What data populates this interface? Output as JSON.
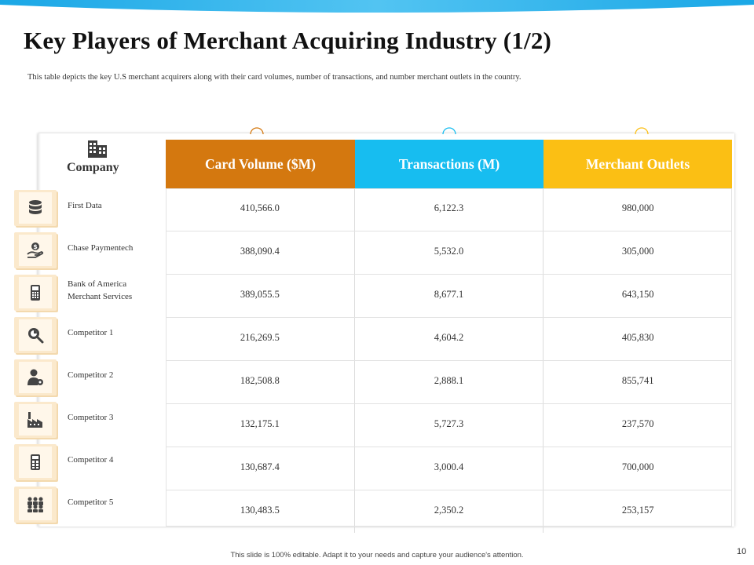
{
  "title": "Key Players of Merchant Acquiring Industry (1/2)",
  "subtitle": "This table depicts the key U.S merchant acquirers along with their card volumes, number of transactions, and number merchant outlets in the country.",
  "company_header": "Company",
  "columns": [
    "Card Volume ($M)",
    "Transactions (M)",
    "Merchant Outlets"
  ],
  "rows": [
    {
      "name": "First Data",
      "name2": "",
      "icon": "database-icon",
      "values": [
        "410,566.0",
        "6,122.3",
        "980,000"
      ]
    },
    {
      "name": "Chase Paymentech",
      "name2": "",
      "icon": "dollar-hand-icon",
      "values": [
        "388,090.4",
        "5,532.0",
        "305,000"
      ]
    },
    {
      "name": "Bank of America",
      "name2": "Merchant Services",
      "icon": "card-terminal-icon",
      "values": [
        "389,055.5",
        "8,677.1",
        "643,150"
      ]
    },
    {
      "name": "Competitor 1",
      "name2": "",
      "icon": "magnifier-icon",
      "values": [
        "216,269.5",
        "4,604.2",
        "405,830"
      ]
    },
    {
      "name": "Competitor 2",
      "name2": "",
      "icon": "user-gear-icon",
      "values": [
        "182,508.8",
        "2,888.1",
        "855,741"
      ]
    },
    {
      "name": "Competitor 3",
      "name2": "",
      "icon": "factory-icon",
      "values": [
        "132,175.1",
        "5,727.3",
        "237,570"
      ]
    },
    {
      "name": "Competitor 4",
      "name2": "",
      "icon": "calculator-icon",
      "values": [
        "130,687.4",
        "3,000.4",
        "700,000"
      ]
    },
    {
      "name": "Competitor 5",
      "name2": "",
      "icon": "team-icon",
      "values": [
        "130,483.5",
        "2,350.2",
        "253,157"
      ]
    }
  ],
  "colors": {
    "card_volume": "#d4780f",
    "transactions": "#17bdf0",
    "merchant_outlets": "#fbbf14",
    "icon_bg": "#fbe9cc"
  },
  "footer": "This slide is 100% editable. Adapt it to your needs and capture your audience's attention.",
  "page_number": "10"
}
